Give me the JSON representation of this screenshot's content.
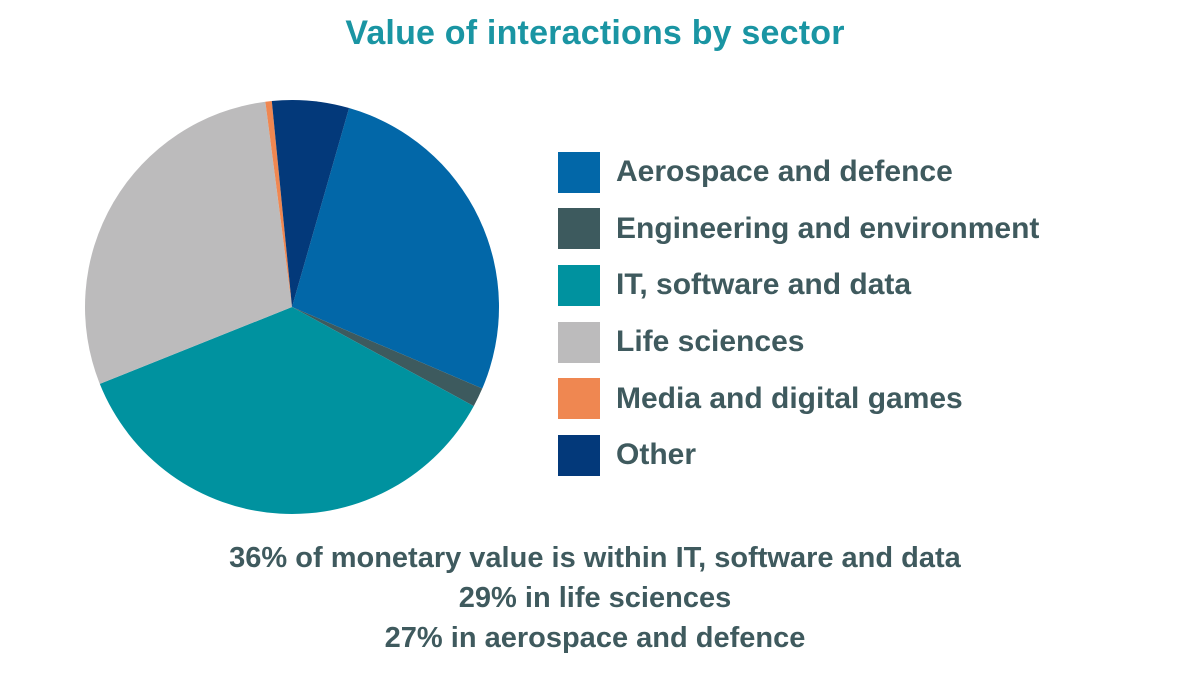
{
  "chart_data": {
    "type": "pie",
    "title": "Value of interactions by sector",
    "series": [
      {
        "name": "Aerospace and defence",
        "value": 27,
        "color": "#0267a8"
      },
      {
        "name": "Engineering and environment",
        "value": 1.5,
        "color": "#3d5a5e"
      },
      {
        "name": "IT, software and data",
        "value": 36,
        "color": "#00929f"
      },
      {
        "name": "Life sciences",
        "value": 29,
        "color": "#bcbbbc"
      },
      {
        "name": "Media and digital games",
        "value": 0.5,
        "color": "#ef8751"
      },
      {
        "name": "Other",
        "value": 6,
        "color": "#03397a"
      }
    ],
    "legend_position": "right",
    "annotations": [
      "36% of monetary value is within IT, software and data",
      "29% in life sciences",
      "27% in aerospace and defence"
    ]
  }
}
